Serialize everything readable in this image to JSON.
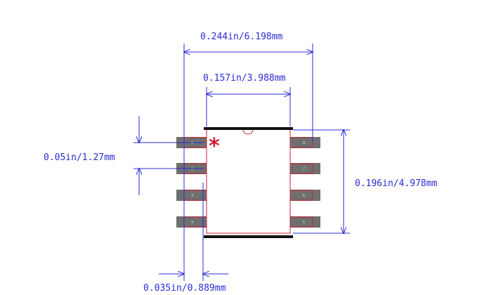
{
  "colors": {
    "dimension": "#2b2bd6",
    "outline": "#cc2233",
    "pad": "#6f6f6f",
    "bar": "#111111",
    "marker": "#cc2233"
  },
  "pin1_marker": "*",
  "dimensions": {
    "overall_width": "0.244in/6.198mm",
    "body_width": "0.157in/3.988mm",
    "pitch": "0.05in/1.27mm",
    "body_length": "0.196in/4.978mm",
    "lead_width": "0.035in/0.889mm"
  },
  "pins_left": [
    "1",
    "2",
    "3",
    "4"
  ],
  "pins_right": [
    "8",
    "7",
    "6",
    "5"
  ]
}
